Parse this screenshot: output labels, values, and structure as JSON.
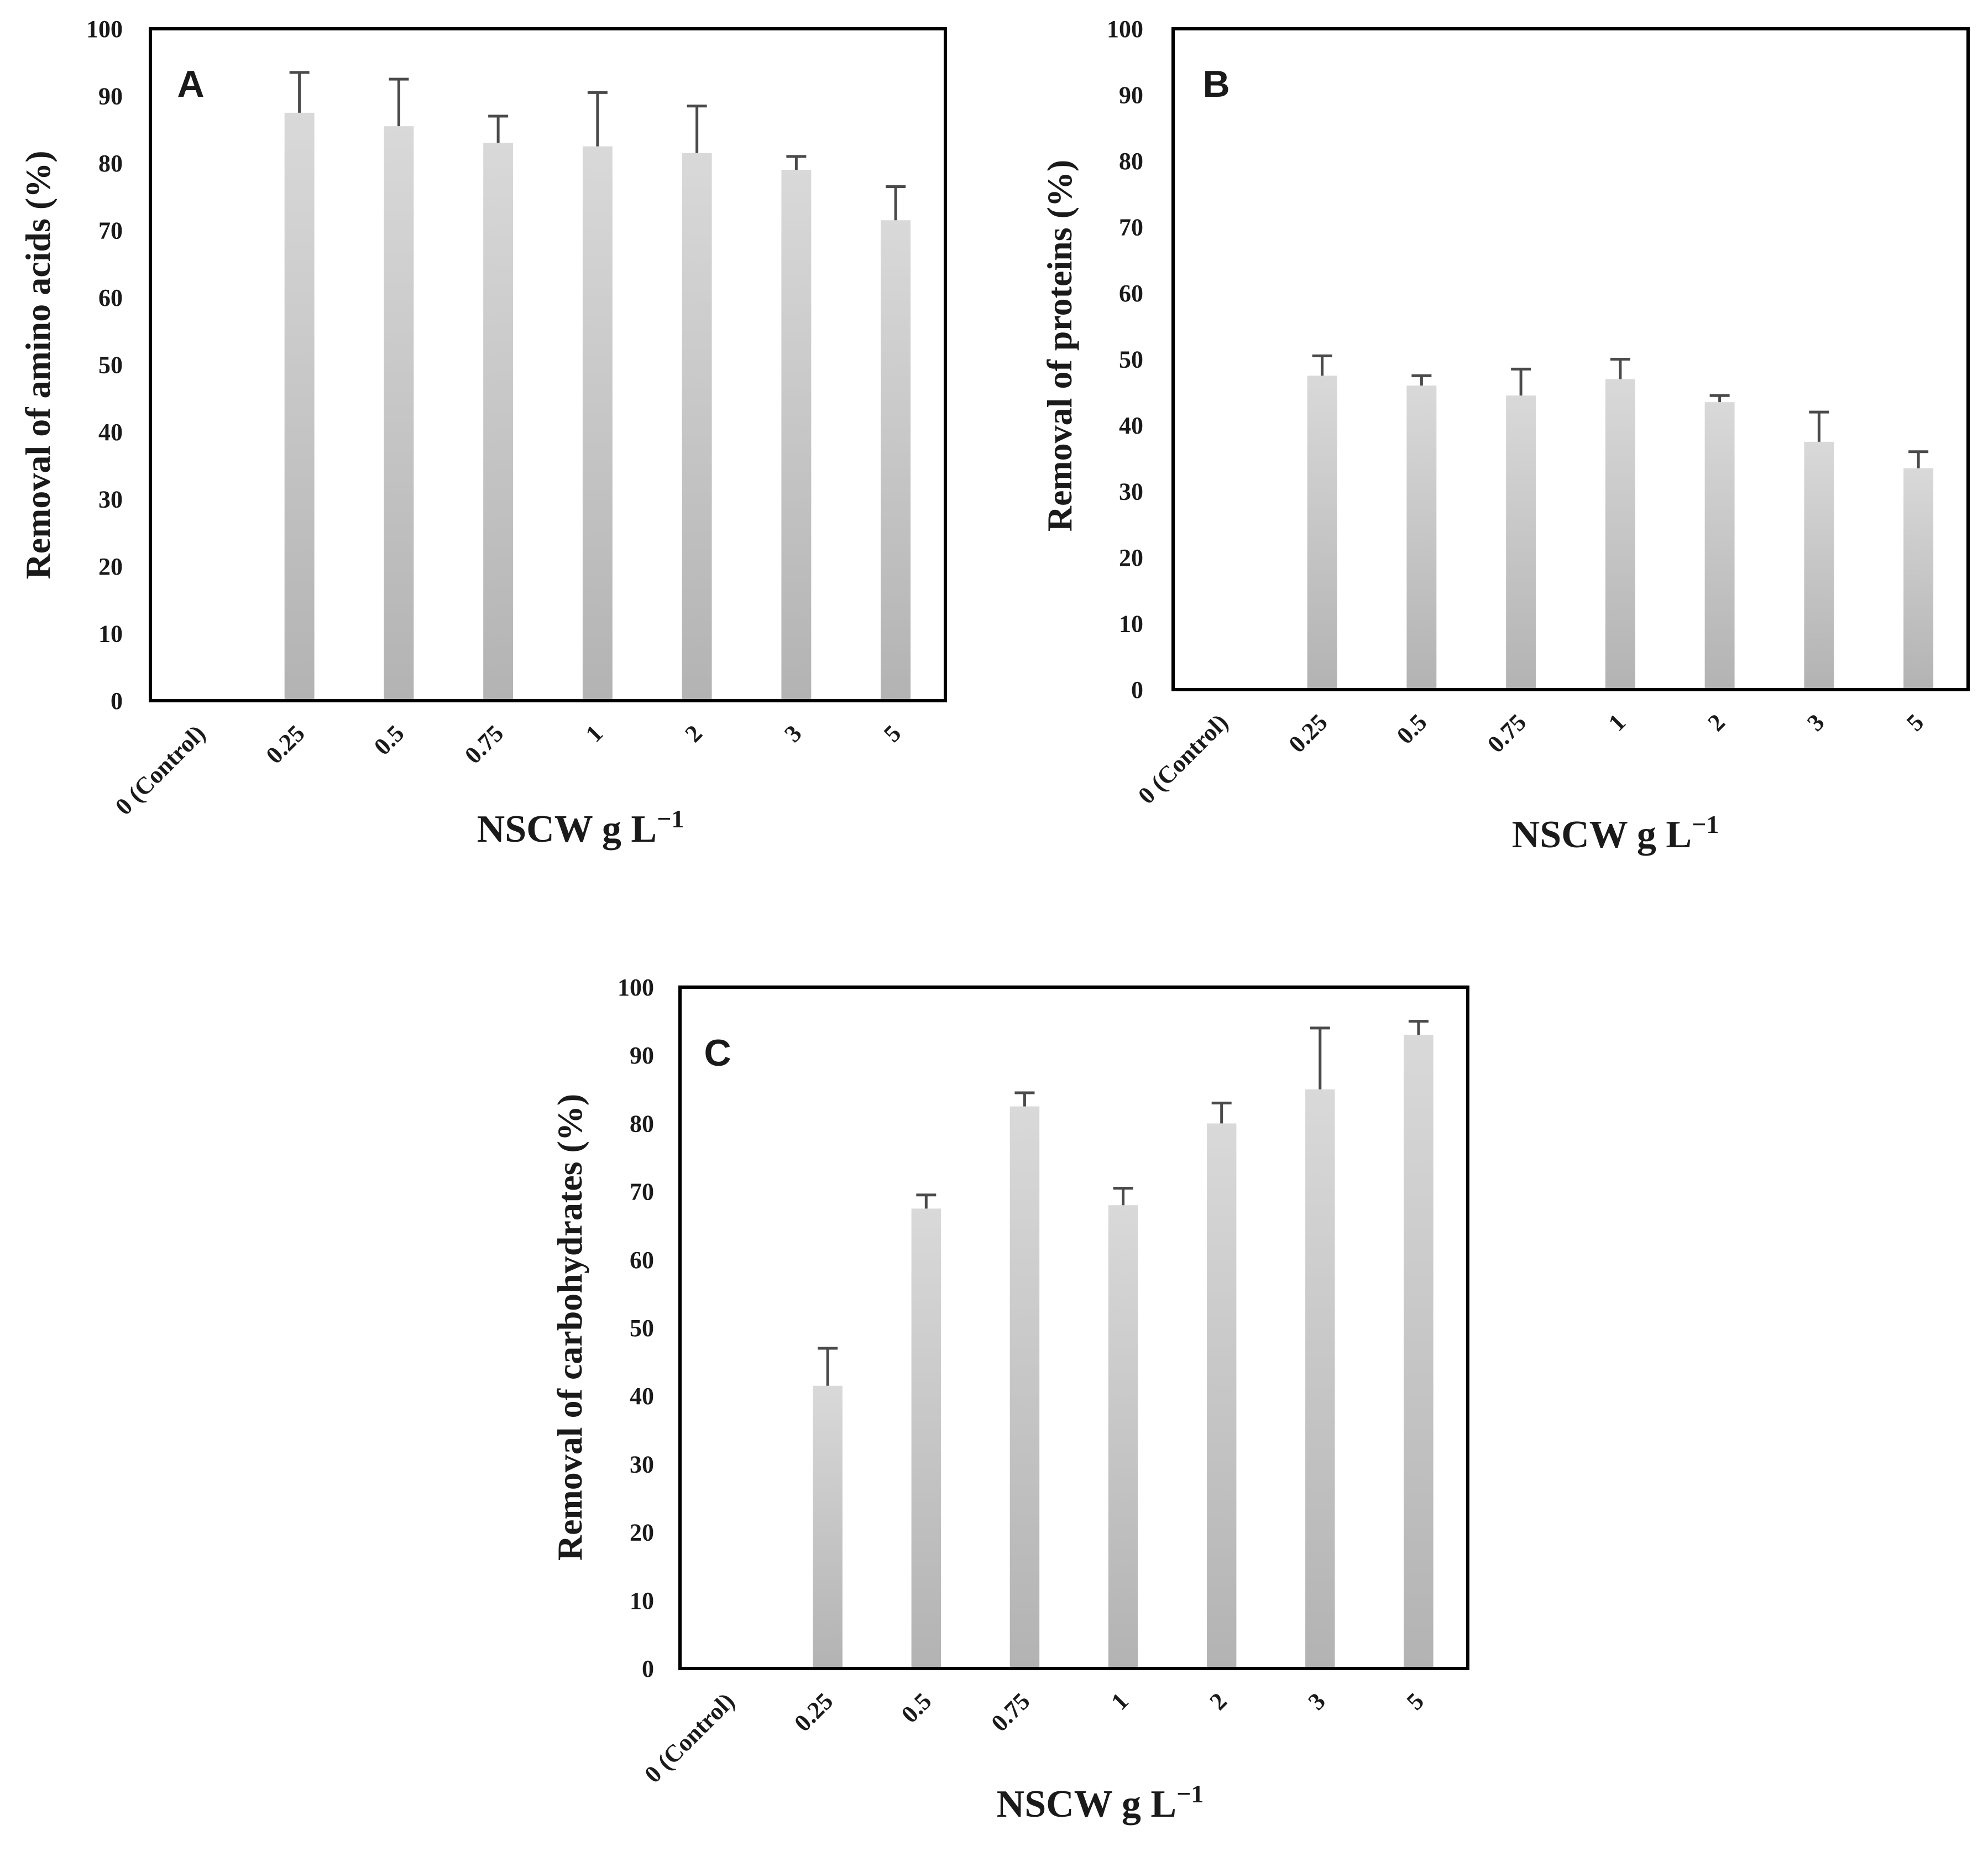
{
  "chart_data": [
    {
      "type": "bar",
      "panel_label": "A",
      "categories": [
        "0 (Control)",
        "0.25",
        "0.5",
        "0.75",
        "1",
        "2",
        "3",
        "5"
      ],
      "values": [
        0,
        87.5,
        85.5,
        83,
        82.5,
        81.5,
        79,
        71.5
      ],
      "errors": [
        0,
        6,
        7,
        4,
        8,
        7,
        2,
        5
      ],
      "ylabel": "Removal of amino acids  (%)",
      "xlabel_main": "NSCW g L",
      "xlabel_sup": "−1",
      "ylim": [
        0,
        100
      ],
      "yticks": [
        "0",
        "10",
        "20",
        "30",
        "40",
        "50",
        "60",
        "70",
        "80",
        "90",
        "100"
      ],
      "bar_color_top": "#d9d9d9",
      "bar_color_bottom": "#b3b3b3"
    },
    {
      "type": "bar",
      "panel_label": "B",
      "categories": [
        "0 (Control)",
        "0.25",
        "0.5",
        "0.75",
        "1",
        "2",
        "3",
        "5"
      ],
      "values": [
        0,
        47.5,
        46,
        44.5,
        47,
        43.5,
        37.5,
        33.5
      ],
      "errors": [
        0,
        3,
        1.5,
        4,
        3,
        1,
        4.5,
        2.5
      ],
      "ylabel": "Removal of  proteins (%)",
      "xlabel_main": "NSCW g L",
      "xlabel_sup": "−1",
      "ylim": [
        0,
        100
      ],
      "yticks": [
        "0",
        "10",
        "20",
        "30",
        "40",
        "50",
        "60",
        "70",
        "80",
        "90",
        "100"
      ],
      "bar_color_top": "#d9d9d9",
      "bar_color_bottom": "#b3b3b3"
    },
    {
      "type": "bar",
      "panel_label": "C",
      "categories": [
        "0 (Control)",
        "0.25",
        "0.5",
        "0.75",
        "1",
        "2",
        "3",
        "5"
      ],
      "values": [
        0,
        41.5,
        67.5,
        82.5,
        68,
        80,
        85,
        93
      ],
      "errors": [
        0,
        5.5,
        2,
        2,
        2.5,
        3,
        9,
        2
      ],
      "ylabel": "Removal of  carbohydrates (%)",
      "xlabel_main": "NSCW g L",
      "xlabel_sup": "−1",
      "ylim": [
        0,
        100
      ],
      "yticks": [
        "0",
        "10",
        "20",
        "30",
        "40",
        "50",
        "60",
        "70",
        "80",
        "90",
        "100"
      ],
      "bar_color_top": "#d9d9d9",
      "bar_color_bottom": "#b3b3b3"
    }
  ]
}
